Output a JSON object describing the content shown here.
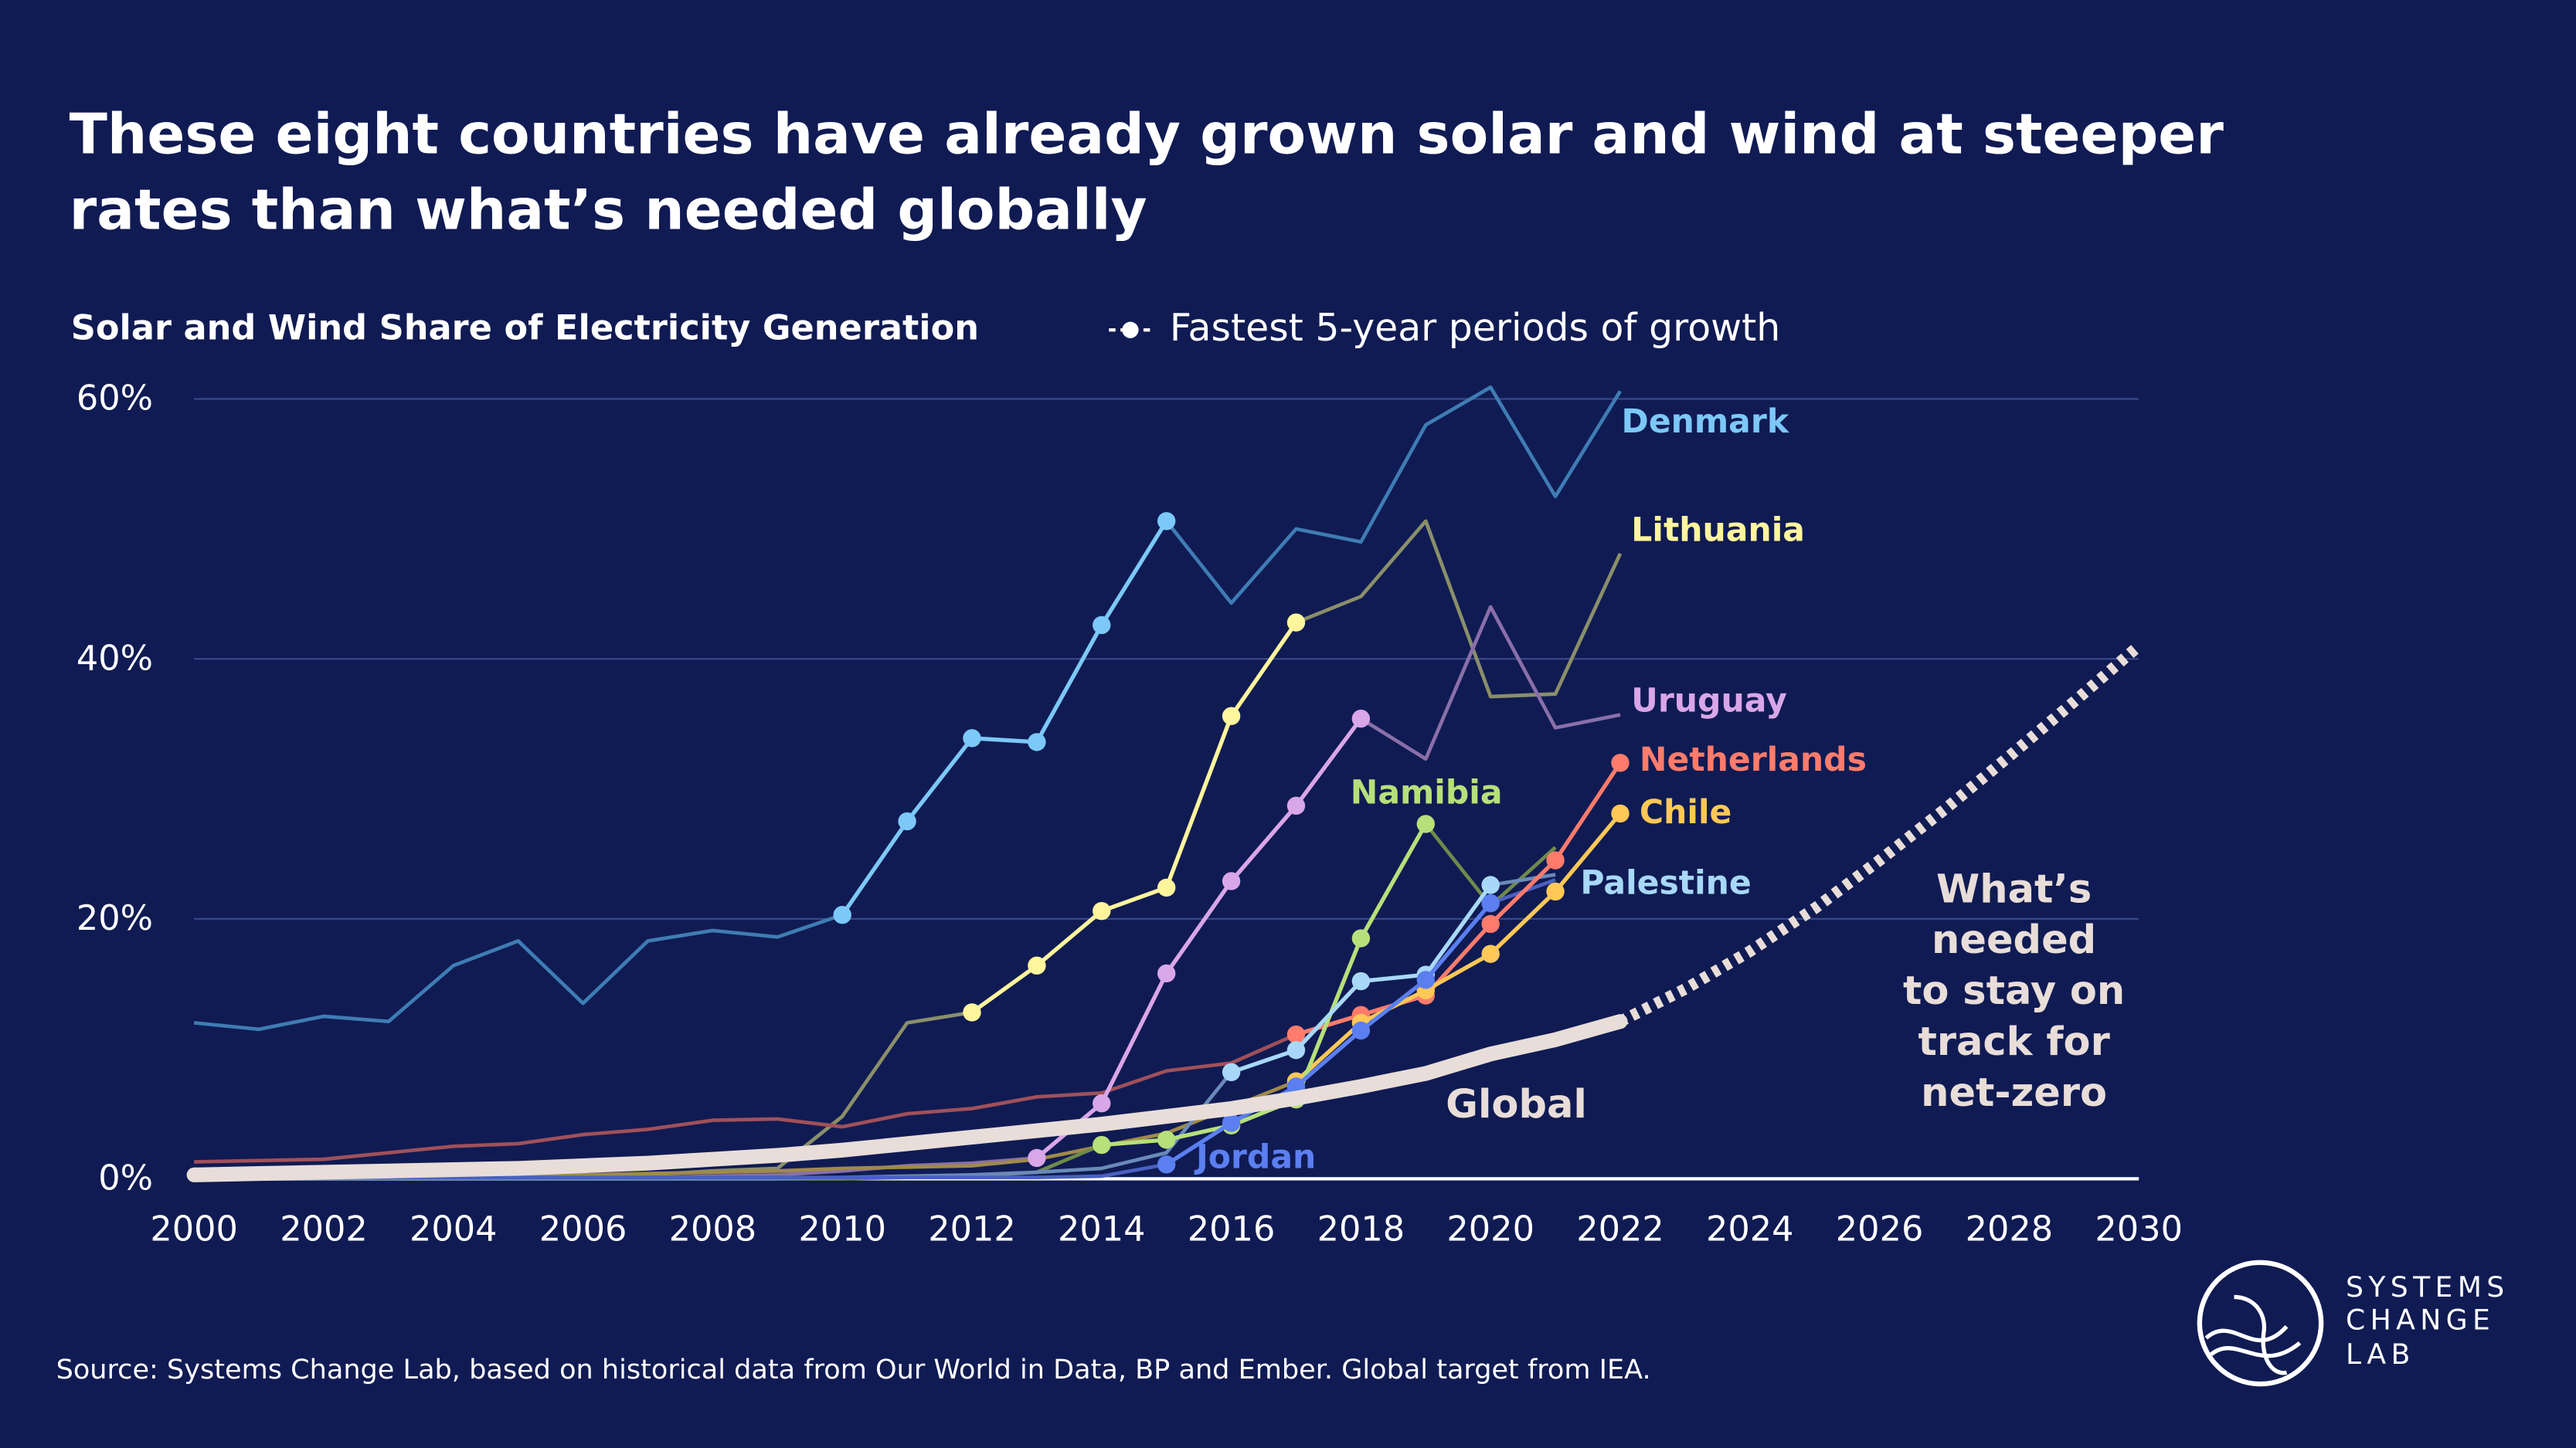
{
  "chart_data": {
    "type": "line",
    "title": [
      "These eight countries have already grown solar and wind at steeper",
      "rates than what’s needed globally"
    ],
    "subtitle": "Solar and Wind Share of Electricity Generation",
    "legend_label": "Fastest 5-year periods of growth",
    "source": "Source: Systems Change Lab, based on historical data from Our World in Data, BP and Ember. Global target from IEA.",
    "x": [
      2000,
      2001,
      2002,
      2003,
      2004,
      2005,
      2006,
      2007,
      2008,
      2009,
      2010,
      2011,
      2012,
      2013,
      2014,
      2015,
      2016,
      2017,
      2018,
      2019,
      2020,
      2021,
      2022
    ],
    "xlim": [
      2000,
      2030
    ],
    "xticks": [
      2000,
      2002,
      2004,
      2006,
      2008,
      2010,
      2012,
      2014,
      2016,
      2018,
      2020,
      2022,
      2024,
      2026,
      2028,
      2030
    ],
    "ylim": [
      0,
      60
    ],
    "yticks": [
      {
        "value": 0,
        "label": "0%"
      },
      {
        "value": 20,
        "label": "20%"
      },
      {
        "value": 40,
        "label": "40%"
      },
      {
        "value": 60,
        "label": "60%"
      }
    ],
    "grid": true,
    "series": [
      {
        "name": "Denmark",
        "color": "#7cc8f8",
        "base_color": "#3f7cb4",
        "highlight": [
          2010,
          2015
        ],
        "values": [
          12.0,
          11.5,
          12.5,
          12.1,
          16.4,
          18.3,
          13.5,
          18.3,
          19.1,
          18.6,
          20.3,
          27.5,
          33.9,
          33.6,
          42.6,
          50.6,
          44.3,
          50.0,
          49.0,
          58.0,
          60.9,
          52.5,
          60.6
        ]
      },
      {
        "name": "Lithuania",
        "color": "#fff59d",
        "base_color": "#8a8f6a",
        "highlight": [
          2012,
          2017
        ],
        "values": [
          0,
          0,
          0,
          0,
          0,
          0.1,
          0.2,
          0.3,
          0.6,
          0.8,
          4.8,
          12.0,
          12.8,
          16.4,
          20.6,
          22.4,
          35.6,
          42.8,
          44.8,
          50.6,
          37.1,
          37.3,
          48.1
        ]
      },
      {
        "name": "Uruguay",
        "color": "#d9a6e8",
        "base_color": "#8a6fa8",
        "highlight": [
          2013,
          2018
        ],
        "values": [
          0,
          0,
          0,
          0,
          0,
          0,
          0,
          0.1,
          0.2,
          0.3,
          0.6,
          1.0,
          1.2,
          1.6,
          5.8,
          15.8,
          22.9,
          28.7,
          35.4,
          32.3,
          44.0,
          34.7,
          35.7
        ]
      },
      {
        "name": "Netherlands",
        "color": "#ff7b6b",
        "base_color": "#a0505a",
        "highlight": [
          2017,
          2022
        ],
        "values": [
          1.3,
          1.4,
          1.5,
          2.0,
          2.5,
          2.7,
          3.4,
          3.8,
          4.5,
          4.6,
          4.0,
          5.0,
          5.4,
          6.3,
          6.6,
          8.3,
          8.9,
          11.1,
          12.6,
          14.1,
          19.6,
          24.5,
          32.0
        ]
      },
      {
        "name": "Chile",
        "color": "#ffc857",
        "base_color": "#a08a4a",
        "highlight": [
          2017,
          2022
        ],
        "values": [
          0.2,
          0.2,
          0.2,
          0.2,
          0.3,
          0.3,
          0.3,
          0.4,
          0.5,
          0.6,
          0.8,
          0.9,
          1.0,
          1.5,
          2.5,
          3.5,
          5.5,
          7.5,
          12.0,
          14.5,
          17.3,
          22.1,
          28.1
        ]
      },
      {
        "name": "Namibia",
        "color": "#b6e07a",
        "base_color": "#6f8a4a",
        "highlight": [
          2014,
          2019
        ],
        "values": [
          0,
          0,
          0,
          0,
          0,
          0,
          0,
          0,
          0,
          0,
          0,
          0.1,
          0.2,
          0.5,
          2.6,
          3.0,
          4.1,
          6.1,
          18.5,
          27.3,
          21.0,
          25.5,
          null
        ]
      },
      {
        "name": "Palestine",
        "color": "#a8d8f8",
        "base_color": "#6a8ab8",
        "highlight": [
          2016,
          2020
        ],
        "values": [
          0,
          0,
          0,
          0,
          0,
          0,
          0,
          0,
          0,
          0,
          0.1,
          0.2,
          0.3,
          0.5,
          0.8,
          2.0,
          8.2,
          9.9,
          15.2,
          15.7,
          22.6,
          23.4,
          null
        ]
      },
      {
        "name": "Jordan",
        "color": "#5b7ff0",
        "base_color": "#4a60c0",
        "highlight": [
          2015,
          2020
        ],
        "values": [
          0.1,
          0.1,
          0.1,
          0.1,
          0.1,
          0.1,
          0.1,
          0.1,
          0.1,
          0.1,
          0.1,
          0.1,
          0.1,
          0.1,
          0.2,
          1.1,
          4.3,
          7.1,
          11.4,
          15.3,
          21.2,
          23.0,
          null
        ]
      },
      {
        "name": "Global",
        "color": "#e8ddd8",
        "role": "global",
        "values": [
          0.3,
          0.4,
          0.5,
          0.6,
          0.7,
          0.8,
          1.0,
          1.2,
          1.5,
          1.8,
          2.2,
          2.7,
          3.2,
          3.7,
          4.2,
          4.8,
          5.4,
          6.2,
          7.1,
          8.1,
          9.6,
          10.7,
          12.1
        ]
      },
      {
        "name": [
          "What’s",
          "needed",
          "to stay on",
          "track for",
          "net-zero"
        ],
        "color": "#e8ddd8",
        "role": "target",
        "x": [
          2022,
          2023,
          2024,
          2025,
          2026,
          2027,
          2028,
          2029,
          2030
        ],
        "values": [
          12.1,
          14.6,
          17.5,
          20.8,
          24.5,
          28.4,
          32.5,
          36.7,
          41.0
        ]
      }
    ]
  },
  "logo": [
    "SYSTEMS",
    "CHANGE",
    "LAB"
  ]
}
